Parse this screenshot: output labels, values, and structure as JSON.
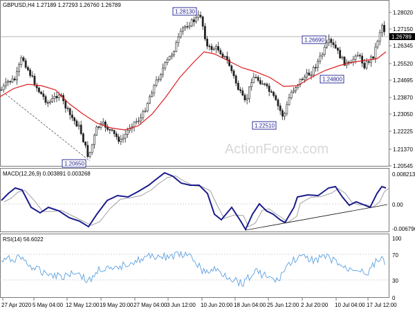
{
  "chart": {
    "header": "GBPUSD,H4  1.27189 1.27293 1.26760 1.26789",
    "watermark": "ActionForex.com",
    "price_axis": [
      "1.28020",
      "1.27150",
      "1.26345",
      "1.25520",
      "1.24695",
      "1.23870",
      "1.23050",
      "1.22225",
      "1.21370",
      "1.20545"
    ],
    "current_price": "1.26789",
    "callouts": [
      "1.28130",
      "1.26690",
      "1.24800",
      "1.22510",
      "1.20650"
    ],
    "macd": {
      "title": "MACD(12,26,9) 0.003891 0.003268",
      "axis": [
        "0.008213",
        "0.00",
        "-0.006796"
      ]
    },
    "rsi": {
      "title": "RSI(14) 56.6022",
      "axis": [
        "100",
        "70",
        "30",
        "0"
      ]
    },
    "time_axis": [
      "27 Apr 2020",
      "5 May 04:00",
      "12 May 12:00",
      "19 May 20:00",
      "27 May 04:00",
      "3 Jun 12:00",
      "10 Jun 20:00",
      "18 Jun 04:00",
      "25 Jun 12:00",
      "2 Jul 20:00",
      "10 Jul 04:00",
      "17 Jul 12:00"
    ]
  },
  "colors": {
    "candle": "#222222",
    "ma": "#dd1c1c",
    "macd": "#1a1a8c",
    "signal": "#a0a0a0",
    "rsi": "#5aa0e0",
    "callout_border": "#1a1a8c",
    "grid": "#c8c8c8"
  }
}
